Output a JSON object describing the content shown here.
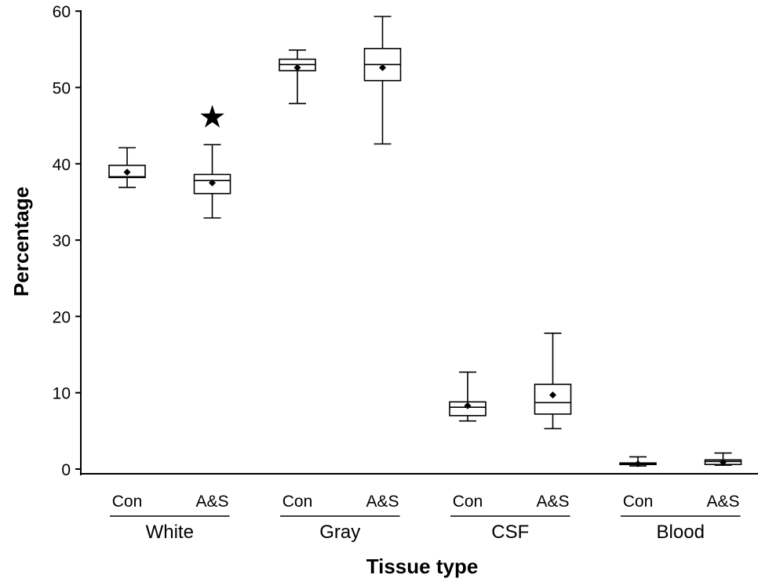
{
  "chart_data": {
    "type": "box",
    "title": "",
    "xlabel": "Tissue type",
    "ylabel": "Percentage",
    "ylim": [
      0,
      61
    ],
    "yticks": [
      0,
      10,
      20,
      30,
      40,
      50,
      60
    ],
    "grid": false,
    "legend": "none",
    "annotation": {
      "symbol": "★",
      "group": "White",
      "category": "A&S",
      "y": 46.2
    },
    "groups": [
      {
        "name": "White",
        "categories": [
          {
            "label": "Con",
            "whisker_low": 36.9,
            "q1": 38.2,
            "median": 38.3,
            "q3": 39.8,
            "whisker_high": 42.1,
            "mean": 38.9
          },
          {
            "label": "A&S",
            "whisker_low": 32.9,
            "q1": 36.1,
            "median": 37.8,
            "q3": 38.6,
            "whisker_high": 42.5,
            "mean": 37.5
          }
        ]
      },
      {
        "name": "Gray",
        "categories": [
          {
            "label": "Con",
            "whisker_low": 47.9,
            "q1": 52.2,
            "median": 53.0,
            "q3": 53.7,
            "whisker_high": 54.9,
            "mean": 52.6
          },
          {
            "label": "A&S",
            "whisker_low": 42.6,
            "q1": 50.9,
            "median": 53.0,
            "q3": 55.1,
            "whisker_high": 59.3,
            "mean": 52.6
          }
        ]
      },
      {
        "name": "CSF",
        "categories": [
          {
            "label": "Con",
            "whisker_low": 6.3,
            "q1": 7.0,
            "median": 8.1,
            "q3": 8.8,
            "whisker_high": 12.7,
            "mean": 8.3
          },
          {
            "label": "A&S",
            "whisker_low": 5.3,
            "q1": 7.2,
            "median": 8.7,
            "q3": 11.1,
            "whisker_high": 17.8,
            "mean": 9.7
          }
        ]
      },
      {
        "name": "Blood",
        "categories": [
          {
            "label": "Con",
            "whisker_low": 0.4,
            "q1": 0.6,
            "median": 0.7,
            "q3": 0.8,
            "whisker_high": 1.6,
            "mean": 0.7
          },
          {
            "label": "A&S",
            "whisker_low": 0.5,
            "q1": 0.6,
            "median": 1.0,
            "q3": 1.2,
            "whisker_high": 2.1,
            "mean": 0.9
          }
        ]
      }
    ]
  }
}
